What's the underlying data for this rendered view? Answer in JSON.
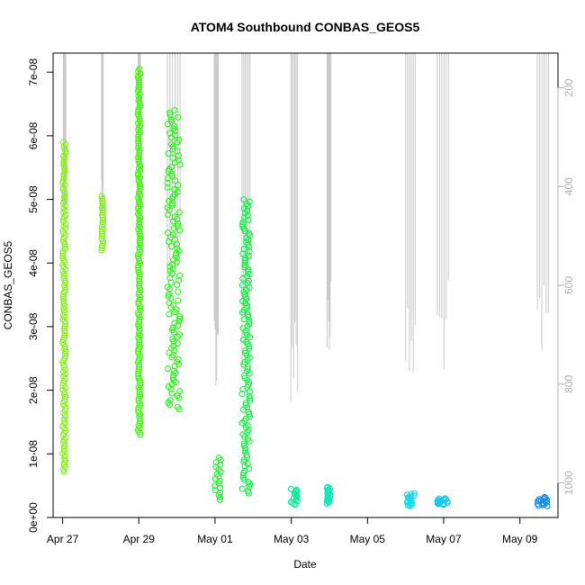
{
  "chart_data": {
    "type": "scatter",
    "title": "ATOM4 Southbound CONBAS_GEOS5",
    "xlabel": "Date",
    "ylabel": "CONBAS_GEOS5",
    "x_ticks": [
      "Apr 27",
      "Apr 29",
      "May 01",
      "May 03",
      "May 05",
      "May 07",
      "May 09"
    ],
    "y_ticks": [
      "0e+00",
      "1e-08",
      "2e-08",
      "3e-08",
      "4e-08",
      "5e-08",
      "6e-08",
      "7e-08"
    ],
    "y2_ticks": [
      "200",
      "400",
      "600",
      "800",
      "1000"
    ],
    "xlim": [
      "2016-04-26T18:00",
      "2016-05-10T00:00"
    ],
    "ylim": [
      0,
      7.3e-08
    ],
    "y2lim": [
      1070,
      130
    ],
    "y2_reversed": true,
    "grid": false,
    "legend": "none",
    "colors": {
      "axis": "#000000",
      "secondary_axis": "#b0b0b0",
      "altitude_trace": "#c8c8c8"
    },
    "clusters": [
      {
        "start": "2016-04-27T00:00",
        "end": "2016-04-27T02:00",
        "ymin": 7.2e-09,
        "ymax": 5.9e-08,
        "color": "#88ee22"
      },
      {
        "start": "2016-04-28T00:30",
        "end": "2016-04-28T01:30",
        "ymin": 4.2e-08,
        "ymax": 5.05e-08,
        "color": "#7cf01a"
      },
      {
        "start": "2016-04-28T23:30",
        "end": "2016-04-29T01:00",
        "ymin": 1.3e-08,
        "ymax": 7.05e-08,
        "color": "#44f511"
      },
      {
        "start": "2016-04-29T18:00",
        "end": "2016-04-30T02:00",
        "ymin": 1.7e-08,
        "ymax": 6.4e-08,
        "color": "#2af51a"
      },
      {
        "start": "2016-04-30T23:30",
        "end": "2016-05-01T04:00",
        "ymin": 2.8e-09,
        "ymax": 9.4e-09,
        "color": "#1ff22a"
      },
      {
        "start": "2016-05-01T17:00",
        "end": "2016-05-01T22:00",
        "ymin": 3.8e-09,
        "ymax": 5e-08,
        "color": "#18ef48"
      },
      {
        "start": "2016-05-02T23:45",
        "end": "2016-05-03T04:00",
        "ymin": 2e-09,
        "ymax": 4.5e-09,
        "color": "#12e89a"
      },
      {
        "start": "2016-05-03T22:30",
        "end": "2016-05-04T01:00",
        "ymin": 2.2e-09,
        "ymax": 4.8e-09,
        "color": "#0fe5b5"
      },
      {
        "start": "2016-05-06T00:00",
        "end": "2016-05-06T06:00",
        "ymin": 1.8e-09,
        "ymax": 3.8e-09,
        "color": "#12d6ee"
      },
      {
        "start": "2016-05-06T20:00",
        "end": "2016-05-07T03:00",
        "ymin": 2e-09,
        "ymax": 3e-09,
        "color": "#15c8ee"
      },
      {
        "start": "2016-05-09T11:00",
        "end": "2016-05-09T18:00",
        "ymin": 1.8e-09,
        "ymax": 3.2e-09,
        "color": "#1a8ee8"
      }
    ],
    "altitude_profiles": [
      {
        "start": "2016-04-27T00:30",
        "end": "2016-04-27T02:00",
        "top": 130,
        "bottom": 470
      },
      {
        "start": "2016-04-28T00:30",
        "end": "2016-04-28T01:30",
        "top": 130,
        "bottom": 470
      },
      {
        "start": "2016-04-28T23:30",
        "end": "2016-04-29T01:00",
        "top": 130,
        "bottom": 580
      },
      {
        "start": "2016-04-29T18:00",
        "end": "2016-04-30T02:00",
        "top": 130,
        "bottom": 600
      },
      {
        "start": "2016-04-30T23:30",
        "end": "2016-05-01T02:00",
        "top": 130,
        "bottom": 820
      },
      {
        "start": "2016-05-01T17:00",
        "end": "2016-05-01T22:00",
        "top": 130,
        "bottom": 810
      },
      {
        "start": "2016-05-02T23:45",
        "end": "2016-05-03T04:00",
        "top": 130,
        "bottom": 840
      },
      {
        "start": "2016-05-03T22:30",
        "end": "2016-05-04T01:00",
        "top": 130,
        "bottom": 760
      },
      {
        "start": "2016-05-06T00:00",
        "end": "2016-05-06T06:00",
        "top": 130,
        "bottom": 840
      },
      {
        "start": "2016-05-06T20:00",
        "end": "2016-05-07T03:00",
        "top": 130,
        "bottom": 780
      },
      {
        "start": "2016-05-09T11:00",
        "end": "2016-05-09T18:00",
        "top": 130,
        "bottom": 800
      }
    ]
  }
}
